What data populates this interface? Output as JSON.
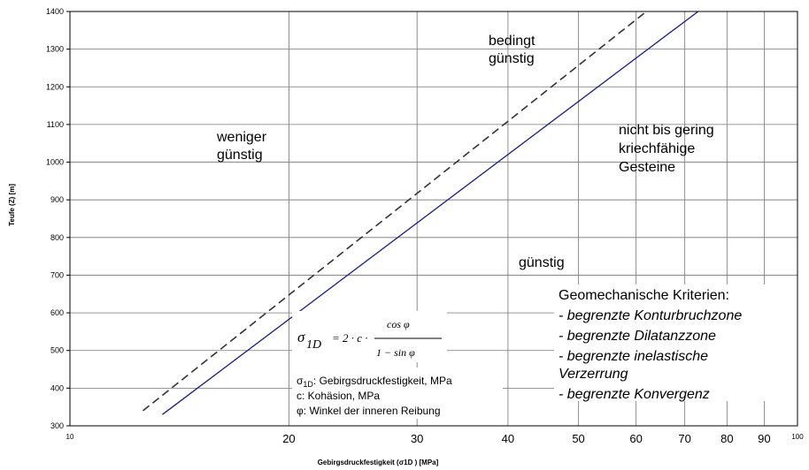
{
  "chart_data": {
    "type": "line",
    "xlabel": "Gebirgsdruckfestigkeit (σ1D ) [MPa]",
    "ylabel": "Teufe (Z) [m]",
    "xscale": "log",
    "xlim": [
      10,
      100
    ],
    "ylim": [
      300,
      1400
    ],
    "grid": true,
    "x_ticks_major": [
      "10",
      "100"
    ],
    "x_ticks_minor": [
      "20",
      "30",
      "40",
      "50",
      "60",
      "70",
      "80",
      "90"
    ],
    "y_ticks": [
      "300",
      "400",
      "500",
      "600",
      "700",
      "800",
      "900",
      "1000",
      "1100",
      "1200",
      "1300",
      "1400"
    ],
    "series": [
      {
        "style": "dashed",
        "color": "#333333",
        "x": [
          12.6,
          62
        ],
        "y": [
          340,
          1400
        ]
      },
      {
        "style": "solid",
        "color": "#1a1a8c",
        "x": [
          13.4,
          73
        ],
        "y": [
          330,
          1400
        ]
      }
    ],
    "regions": {
      "weniger": [
        "weniger",
        "günstig"
      ],
      "bedingt": [
        "bedingt",
        "günstig"
      ],
      "nicht": [
        "nicht bis gering",
        "kriechfähige",
        "Gesteine"
      ],
      "guenstig": "günstig"
    },
    "criteria": {
      "title": "Geomechanische Kriterien:",
      "items": [
        "- begrenzte Konturbruchzone",
        "- begrenzte Dilatanzzone",
        "- begrenzte inelastische",
        "Verzerrung",
        "- begrenzte Konvergenz"
      ]
    },
    "formula": {
      "sigma": "σ",
      "sub": "1D",
      "rhs": "= 2 · c ·",
      "numerator": "cos φ",
      "denominator": "1 − sin φ"
    },
    "notes": {
      "sigma_prefix": "σ",
      "sigma_sub": "1D",
      "sigma_text": ": Gebirgsdruckfestigkeit, MPa",
      "c_text": "c: Kohäsion, MPa",
      "phi_text": "φ: Winkel der inneren Reibung"
    }
  }
}
